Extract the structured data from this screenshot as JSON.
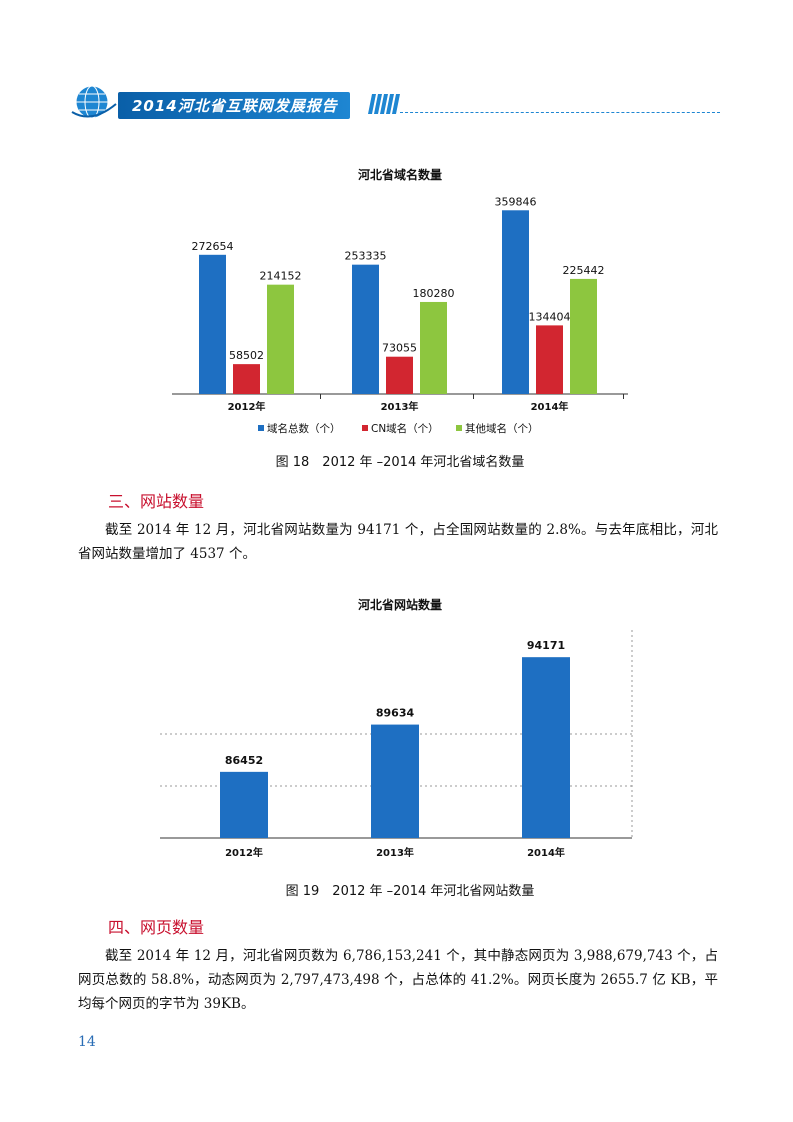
{
  "header": {
    "title": "2014河北省互联网发展报告"
  },
  "colors": {
    "blue": "#1e6fc2",
    "red": "#d22630",
    "green": "#8dc63f",
    "heading": "#c8102e",
    "accent": "#1e86d2"
  },
  "figure18": {
    "caption": "图 18　2012 年 –2014 年河北省域名数量",
    "chart_data": {
      "type": "bar",
      "title": "河北省域名数量",
      "categories": [
        "2012年",
        "2013年",
        "2014年"
      ],
      "series": [
        {
          "name": "域名总数（个）",
          "values": [
            272654,
            253335,
            359846
          ]
        },
        {
          "name": "CN域名（个）",
          "values": [
            58502,
            73055,
            134404
          ]
        },
        {
          "name": "其他域名（个）",
          "values": [
            214152,
            180280,
            225442
          ]
        }
      ],
      "ylim": [
        0,
        380000
      ],
      "legend": "bottom",
      "grid": false
    }
  },
  "section3": {
    "heading": "三、网站数量",
    "paragraph": "截至 2014 年 12 月，河北省网站数量为 94171 个，占全国网站数量的 2.8%。与去年底相比，河北省网站数量增加了 4537 个。"
  },
  "figure19": {
    "caption": "图 19　2012 年 –2014 年河北省网站数量",
    "chart_data": {
      "type": "bar",
      "title": "河北省网站数量",
      "categories": [
        "2012年",
        "2013年",
        "2014年"
      ],
      "values": [
        86452,
        89634,
        94171
      ],
      "ylim": [
        82000,
        96000
      ],
      "grid": true
    }
  },
  "section4": {
    "heading": "四、网页数量",
    "paragraph": "截至 2014 年 12 月，河北省网页数为 6,786,153,241 个，其中静态网页为 3,988,679,743 个，占网页总数的 58.8%，动态网页为 2,797,473,498 个，占总体的 41.2%。网页长度为 2655.7 亿 KB，平均每个网页的字节为 39KB。"
  },
  "page_number": "14"
}
